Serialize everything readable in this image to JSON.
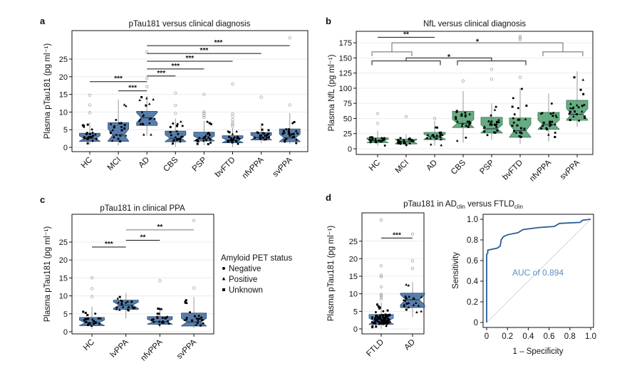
{
  "colors": {
    "ptau_box": "#4f77a6",
    "ptau_edge": "#2e4e74",
    "nfl_box": "#5fa67c",
    "nfl_edge": "#3b7a56",
    "ftld_box": "#5a92d2",
    "roc_line": "#2a5c98",
    "auc_text": "#5b8fc6",
    "outlier": "#9a9a9a"
  },
  "legend": {
    "title": "Amyloid PET status",
    "items": [
      {
        "label": "Negative",
        "shape": "circle"
      },
      {
        "label": "Positive",
        "shape": "triangle"
      },
      {
        "label": "Unknown",
        "shape": "square"
      }
    ]
  },
  "chart_data": [
    {
      "panel": "a",
      "type": "box",
      "title": "pTau181 versus clinical diagnosis",
      "ylabel": "Plasma pTau181 (pg ml⁻¹)",
      "ylim": [
        0,
        32
      ],
      "yticks": [
        0,
        5,
        10,
        15,
        20,
        25
      ],
      "grid": true,
      "color": "ptau",
      "categories": [
        "HC",
        "MCI",
        "AD",
        "CBS",
        "PSP",
        "bvFTD",
        "nfvPPA",
        "svPPA"
      ],
      "boxes": [
        {
          "q1": 1.7,
          "median": 2.5,
          "q3": 4.0,
          "low": 0.8,
          "high": 7.0,
          "outliers": [
            9.8,
            12,
            14.8
          ]
        },
        {
          "q1": 1.7,
          "median": 3.5,
          "q3": 7.0,
          "low": 0.5,
          "high": 13.5,
          "outliers": []
        },
        {
          "q1": 6.2,
          "median": 8.4,
          "q3": 10.2,
          "low": 3.3,
          "high": 14.5,
          "outliers": [
            17.2,
            19.5,
            27
          ]
        },
        {
          "q1": 1.6,
          "median": 2.6,
          "q3": 4.6,
          "low": 0.1,
          "high": 8.2,
          "outliers": [
            9.6,
            11.9,
            15.4
          ]
        },
        {
          "q1": 1.8,
          "median": 2.5,
          "q3": 4.3,
          "low": 0.6,
          "high": 7.5,
          "outliers": [
            8.5,
            9.0,
            9.6,
            10,
            15
          ]
        },
        {
          "q1": 1.3,
          "median": 2.0,
          "q3": 3.3,
          "low": 0.1,
          "high": 5.5,
          "outliers": [
            6.0,
            6.5,
            7.0,
            7.8,
            8.8,
            9.5,
            18
          ]
        },
        {
          "q1": 2.1,
          "median": 2.8,
          "q3": 4.2,
          "low": 1.2,
          "high": 6.8,
          "outliers": [
            14.2
          ]
        },
        {
          "q1": 1.6,
          "median": 2.7,
          "q3": 5.2,
          "low": 1.0,
          "high": 9.7,
          "outliers": [
            12,
            31
          ]
        }
      ],
      "significance": [
        {
          "from": "HC",
          "to": "AD",
          "y": 18.6,
          "label": "***"
        },
        {
          "from": "MCI",
          "to": "AD",
          "y": 16,
          "label": "***"
        },
        {
          "from": "AD",
          "to": "CBS",
          "y": 20.2,
          "label": "***"
        },
        {
          "from": "AD",
          "to": "PSP",
          "y": 22.2,
          "label": "***"
        },
        {
          "from": "AD",
          "to": "bvFTD",
          "y": 24.4,
          "label": "***"
        },
        {
          "from": "AD",
          "to": "nfvPPA",
          "y": 26.6,
          "label": "***"
        },
        {
          "from": "AD",
          "to": "svPPA",
          "y": 28.8,
          "label": "***"
        }
      ]
    },
    {
      "panel": "b",
      "type": "box",
      "title": "NfL versus clinical diagnosis",
      "ylabel": "Plasma NfL (pg ml⁻¹)",
      "ylim": [
        0,
        190
      ],
      "yticks": [
        0,
        25,
        50,
        75,
        100,
        125,
        150,
        175
      ],
      "grid": true,
      "color": "nfl",
      "categories": [
        "HC",
        "MCI",
        "AD",
        "CBS",
        "PSP",
        "bvFTD",
        "nfvPPA",
        "svPPA"
      ],
      "boxes": [
        {
          "q1": 10,
          "median": 13,
          "q3": 18,
          "low": 5,
          "high": 30,
          "outliers": [
            42,
            58
          ]
        },
        {
          "q1": 8,
          "median": 12,
          "q3": 16,
          "low": 3,
          "high": 24,
          "outliers": [
            53
          ]
        },
        {
          "q1": 15,
          "median": 20,
          "q3": 27,
          "low": 5,
          "high": 46,
          "outliers": [
            50
          ]
        },
        {
          "q1": 35,
          "median": 42,
          "q3": 62,
          "low": 10,
          "high": 95,
          "outliers": [
            112
          ]
        },
        {
          "q1": 26,
          "median": 33,
          "q3": 52,
          "low": 15,
          "high": 75,
          "outliers": [
            115,
            131
          ]
        },
        {
          "q1": 19,
          "median": 30,
          "q3": 51,
          "low": 8,
          "high": 100,
          "outliers": [
            118,
            180,
            183,
            186
          ]
        },
        {
          "q1": 32,
          "median": 40,
          "q3": 60,
          "low": 12,
          "high": 91,
          "outliers": []
        },
        {
          "q1": 47,
          "median": 57,
          "q3": 80,
          "low": 36,
          "high": 128,
          "outliers": []
        }
      ],
      "significance": [
        {
          "from": "HC",
          "to": "AD",
          "y": 184,
          "label": "**"
        }
      ],
      "group_brackets": [
        {
          "left": [
            "HC",
            "MCI"
          ],
          "right": [
            "nfvPPA",
            "svPPA"
          ],
          "inner_y": 160,
          "top_y": 175,
          "label": "*"
        },
        {
          "left": [
            "HC",
            "AD"
          ],
          "right": [
            "CBS",
            "bvFTD"
          ],
          "inner_y": 145,
          "top_y": 150,
          "label": "*"
        }
      ]
    },
    {
      "panel": "c",
      "type": "box",
      "title": "pTau181 in clinical PPA",
      "ylabel": "Plasma pTau181 (pg ml⁻¹)",
      "ylim": [
        0,
        32
      ],
      "yticks": [
        0,
        5,
        10,
        15,
        20,
        25
      ],
      "grid": true,
      "color": "ptau",
      "categories": [
        "HC",
        "lvPPA",
        "nfvPPA",
        "svPPA"
      ],
      "boxes": [
        {
          "q1": 1.7,
          "median": 2.5,
          "q3": 4.0,
          "low": 0.8,
          "high": 7.0,
          "outliers": [
            9.8,
            12,
            15
          ]
        },
        {
          "q1": 6.2,
          "median": 7.4,
          "q3": 8.8,
          "low": 3.7,
          "high": 10.8,
          "outliers": []
        },
        {
          "q1": 2.1,
          "median": 2.8,
          "q3": 4.2,
          "low": 1.2,
          "high": 6.8,
          "outliers": [
            14.2
          ]
        },
        {
          "q1": 1.6,
          "median": 2.7,
          "q3": 5.2,
          "low": 1.0,
          "high": 9.7,
          "outliers": [
            12.2,
            31
          ]
        }
      ],
      "significance": [
        {
          "from": "HC",
          "to": "lvPPA",
          "y": 23.6,
          "label": "***"
        },
        {
          "from": "lvPPA",
          "to": "nfvPPA",
          "y": 25.5,
          "label": "**"
        },
        {
          "from": "lvPPA",
          "to": "svPPA",
          "y": 28.4,
          "label": "**"
        }
      ]
    },
    {
      "panel": "d",
      "type": "box",
      "title_parts": [
        "pTau181 in AD",
        "clin",
        " versus FTLD",
        "clin"
      ],
      "ylabel": "Plasma pTau181 (pg ml⁻¹)",
      "ylim": [
        0,
        32
      ],
      "yticks": [
        0,
        5,
        10,
        15,
        20,
        25
      ],
      "grid": true,
      "color": "ptau",
      "categories": [
        "FTLD",
        "AD"
      ],
      "boxes": [
        {
          "q1": 1.3,
          "median": 2.2,
          "q3": 4.1,
          "low": 0.1,
          "high": 7.5,
          "outliers": [
            8.5,
            9.0,
            9.5,
            9.8,
            12,
            14.8,
            15.3,
            18,
            31
          ]
        },
        {
          "q1": 6.1,
          "median": 8.3,
          "q3": 10.2,
          "low": 3.3,
          "high": 13.3,
          "outliers": [
            17.2,
            19.4,
            27
          ]
        }
      ],
      "significance": [
        {
          "from": "FTLD",
          "to": "AD",
          "y": 25.9,
          "label": "***"
        }
      ]
    },
    {
      "panel": "d-roc",
      "type": "line",
      "xlabel": "1 – Specificity",
      "ylabel": "Sensitivity",
      "xlim": [
        0,
        1
      ],
      "ylim": [
        0,
        1
      ],
      "xticks": [
        "0",
        "0.2",
        "0.4",
        "0.6",
        "0.8",
        "1.0"
      ],
      "yticks": [
        "0",
        "0.2",
        "0.4",
        "0.6",
        "0.8",
        "1.0"
      ],
      "annotation": "AUC of 0.894",
      "auc": 0.894,
      "diagonal": true,
      "x": [
        0,
        0,
        0.01,
        0.01,
        0.05,
        0.1,
        0.13,
        0.14,
        0.16,
        0.2,
        0.3,
        0.35,
        0.5,
        0.65,
        0.7,
        0.9,
        0.92,
        1.0
      ],
      "y": [
        0,
        0.66,
        0.67,
        0.7,
        0.71,
        0.72,
        0.74,
        0.8,
        0.83,
        0.85,
        0.87,
        0.9,
        0.92,
        0.93,
        0.96,
        0.97,
        0.99,
        1.0
      ]
    }
  ]
}
